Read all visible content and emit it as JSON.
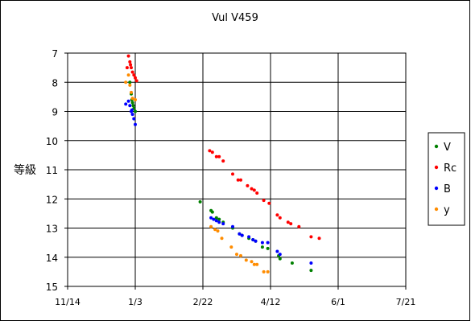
{
  "chart_data": {
    "type": "scatter",
    "title": "Vul V459",
    "xlabel": "",
    "ylabel": "等級",
    "x_axis": {
      "ticks": [
        {
          "label": "11/14",
          "day": 0
        },
        {
          "label": "1/3",
          "day": 50
        },
        {
          "label": "2/22",
          "day": 100
        },
        {
          "label": "4/12",
          "day": 150
        },
        {
          "label": "6/1",
          "day": 200
        },
        {
          "label": "7/21",
          "day": 250
        }
      ],
      "range_days": [
        0,
        250
      ]
    },
    "y_axis": {
      "ticks": [
        "7",
        "8",
        "9",
        "10",
        "11",
        "12",
        "13",
        "14",
        "15"
      ],
      "range": [
        7,
        15
      ],
      "inverted": true
    },
    "grid": true,
    "legend_position": "right",
    "series": [
      {
        "name": "V",
        "color": "#008000",
        "points": [
          [
            46,
            8.0
          ],
          [
            47,
            8.4
          ],
          [
            47.5,
            8.6
          ],
          [
            48,
            8.7
          ],
          [
            48.5,
            8.8
          ],
          [
            49,
            8.9
          ],
          [
            50,
            9.0
          ],
          [
            98,
            12.1
          ],
          [
            106,
            12.4
          ],
          [
            107,
            12.45
          ],
          [
            110,
            12.65
          ],
          [
            112,
            12.7
          ],
          [
            115,
            12.8
          ],
          [
            122,
            13.0
          ],
          [
            127,
            13.2
          ],
          [
            129,
            13.25
          ],
          [
            134,
            13.35
          ],
          [
            137,
            13.4
          ],
          [
            139,
            13.45
          ],
          [
            144,
            13.65
          ],
          [
            148,
            13.7
          ],
          [
            156,
            13.95
          ],
          [
            157,
            14.05
          ],
          [
            166,
            14.2
          ],
          [
            180,
            14.45
          ]
        ]
      },
      {
        "name": "Rc",
        "color": "#ff0000",
        "points": [
          [
            44,
            7.5
          ],
          [
            45,
            7.1
          ],
          [
            46,
            7.3
          ],
          [
            46.5,
            7.4
          ],
          [
            47,
            7.5
          ],
          [
            48,
            7.65
          ],
          [
            49,
            7.75
          ],
          [
            50,
            7.85
          ],
          [
            51,
            7.95
          ],
          [
            105,
            10.35
          ],
          [
            107,
            10.4
          ],
          [
            110,
            10.55
          ],
          [
            112,
            10.55
          ],
          [
            115,
            10.7
          ],
          [
            122,
            11.15
          ],
          [
            126,
            11.35
          ],
          [
            128,
            11.35
          ],
          [
            133,
            11.55
          ],
          [
            136,
            11.65
          ],
          [
            138,
            11.7
          ],
          [
            140,
            11.8
          ],
          [
            145,
            12.05
          ],
          [
            149,
            12.15
          ],
          [
            155,
            12.55
          ],
          [
            157,
            12.65
          ],
          [
            163,
            12.8
          ],
          [
            165,
            12.85
          ],
          [
            171,
            12.95
          ],
          [
            180,
            13.3
          ],
          [
            186,
            13.35
          ]
        ]
      },
      {
        "name": "B",
        "color": "#0000ff",
        "points": [
          [
            43,
            8.75
          ],
          [
            45,
            8.65
          ],
          [
            46,
            8.8
          ],
          [
            47,
            9.0
          ],
          [
            47.5,
            8.95
          ],
          [
            48,
            9.1
          ],
          [
            49,
            9.25
          ],
          [
            50,
            9.45
          ],
          [
            106,
            12.65
          ],
          [
            108,
            12.7
          ],
          [
            110,
            12.75
          ],
          [
            112,
            12.8
          ],
          [
            115,
            12.85
          ],
          [
            122,
            12.95
          ],
          [
            127,
            13.2
          ],
          [
            129,
            13.25
          ],
          [
            134,
            13.3
          ],
          [
            137,
            13.4
          ],
          [
            139,
            13.45
          ],
          [
            144,
            13.5
          ],
          [
            148,
            13.5
          ],
          [
            155,
            13.8
          ],
          [
            157,
            13.9
          ],
          [
            180,
            14.2
          ]
        ]
      },
      {
        "name": "y",
        "color": "#ff8c00",
        "points": [
          [
            43,
            8.0
          ],
          [
            45,
            7.75
          ],
          [
            46,
            8.1
          ],
          [
            47,
            8.35
          ],
          [
            48,
            8.55
          ],
          [
            50,
            8.6
          ],
          [
            106,
            12.95
          ],
          [
            109,
            13.05
          ],
          [
            111,
            13.1
          ],
          [
            114,
            13.35
          ],
          [
            121,
            13.65
          ],
          [
            125,
            13.9
          ],
          [
            128,
            13.95
          ],
          [
            132,
            14.1
          ],
          [
            136,
            14.15
          ],
          [
            138,
            14.25
          ],
          [
            140,
            14.25
          ],
          [
            145,
            14.5
          ],
          [
            148,
            14.5
          ]
        ]
      }
    ]
  }
}
